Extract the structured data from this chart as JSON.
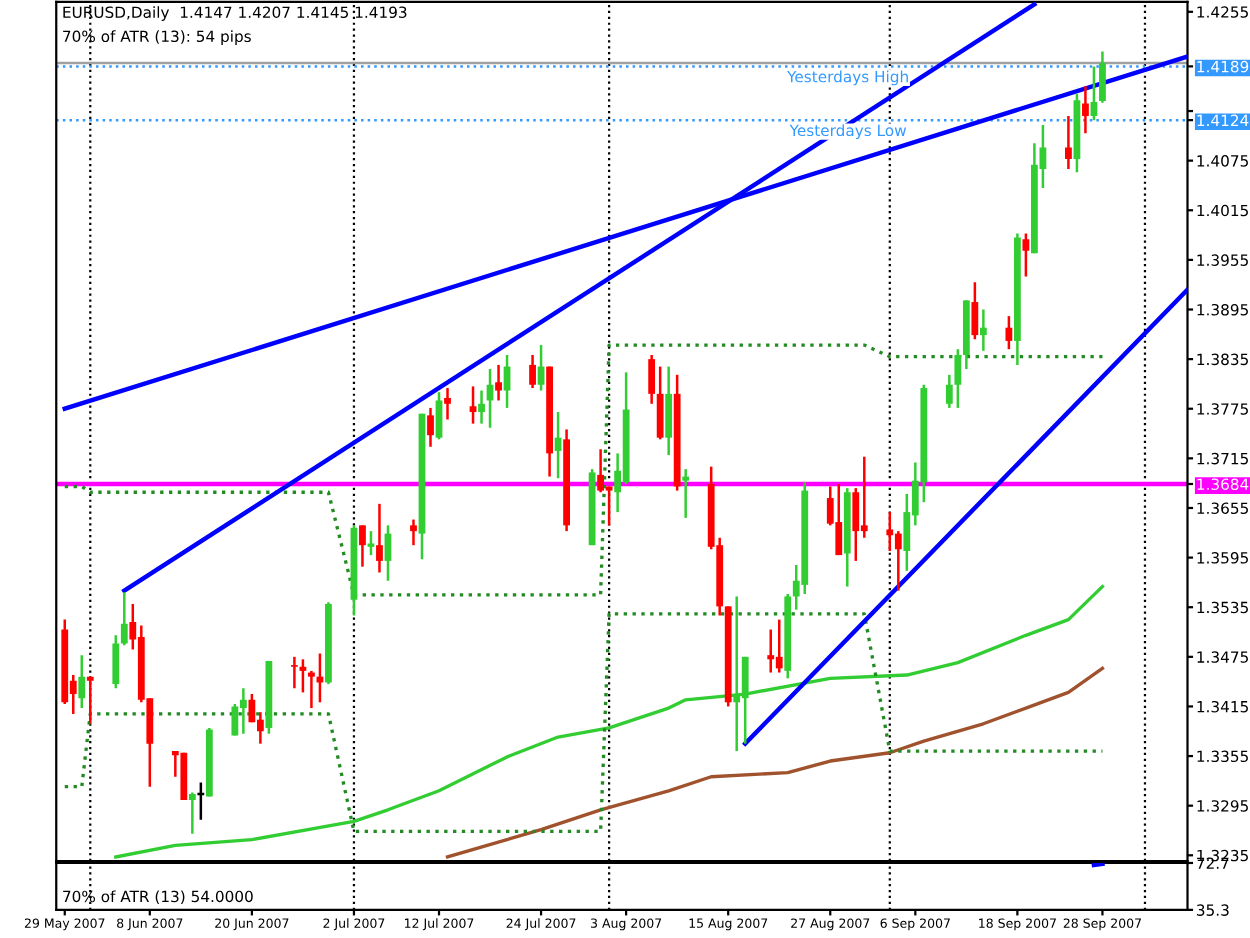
{
  "chart_data": [
    {
      "type": "candlestick",
      "title": "EURUSD,Daily  1.4147 1.4207 1.4145 1.4193",
      "subtitle": "70% of ATR (13): 54 pips",
      "x": [
        "2007-05-29",
        "2007-05-30",
        "2007-05-31",
        "2007-06-01",
        "2007-06-04",
        "2007-06-05",
        "2007-06-06",
        "2007-06-07",
        "2007-06-08",
        "2007-06-11",
        "2007-06-12",
        "2007-06-13",
        "2007-06-14",
        "2007-06-15",
        "2007-06-18",
        "2007-06-19",
        "2007-06-20",
        "2007-06-21",
        "2007-06-22",
        "2007-06-25",
        "2007-06-26",
        "2007-06-27",
        "2007-06-28",
        "2007-06-29",
        "2007-07-02",
        "2007-07-03",
        "2007-07-04",
        "2007-07-05",
        "2007-07-06",
        "2007-07-09",
        "2007-07-10",
        "2007-07-11",
        "2007-07-12",
        "2007-07-13",
        "2007-07-16",
        "2007-07-17",
        "2007-07-18",
        "2007-07-19",
        "2007-07-20",
        "2007-07-23",
        "2007-07-24",
        "2007-07-25",
        "2007-07-26",
        "2007-07-27",
        "2007-07-30",
        "2007-07-31",
        "2007-08-01",
        "2007-08-02",
        "2007-08-03",
        "2007-08-06",
        "2007-08-07",
        "2007-08-08",
        "2007-08-09",
        "2007-08-10",
        "2007-08-13",
        "2007-08-14",
        "2007-08-15",
        "2007-08-16",
        "2007-08-17",
        "2007-08-20",
        "2007-08-21",
        "2007-08-22",
        "2007-08-23",
        "2007-08-24",
        "2007-08-27",
        "2007-08-28",
        "2007-08-29",
        "2007-08-30",
        "2007-08-31",
        "2007-09-03",
        "2007-09-04",
        "2007-09-05",
        "2007-09-06",
        "2007-09-07",
        "2007-09-10",
        "2007-09-11",
        "2007-09-12",
        "2007-09-13",
        "2007-09-14",
        "2007-09-17",
        "2007-09-18",
        "2007-09-19",
        "2007-09-20",
        "2007-09-21",
        "2007-09-24",
        "2007-09-25",
        "2007-09-26",
        "2007-09-27",
        "2007-09-28"
      ],
      "ohlc": [
        [
          1.3508,
          1.352,
          1.3418,
          1.342
        ],
        [
          1.3446,
          1.3453,
          1.3406,
          1.343
        ],
        [
          1.3425,
          1.3477,
          1.3413,
          1.3451
        ],
        [
          1.3451,
          1.3451,
          1.3394,
          1.3446
        ],
        [
          1.3442,
          1.3501,
          1.3437,
          1.3491
        ],
        [
          1.3491,
          1.3553,
          1.3489,
          1.3515
        ],
        [
          1.3517,
          1.3539,
          1.3484,
          1.3496
        ],
        [
          1.3499,
          1.3513,
          1.342,
          1.3423
        ],
        [
          1.3425,
          1.3425,
          1.3318,
          1.337
        ],
        [
          1.3361,
          1.3361,
          1.333,
          1.3356
        ],
        [
          1.3359,
          1.3359,
          1.3302,
          1.3302
        ],
        [
          1.3302,
          1.3311,
          1.3261,
          1.3309
        ],
        [
          1.3309,
          1.3323,
          1.3278,
          1.3309
        ],
        [
          1.3306,
          1.3389,
          1.3306,
          1.3387
        ],
        [
          1.338,
          1.3418,
          1.338,
          1.3415
        ],
        [
          1.3413,
          1.3437,
          1.3382,
          1.3423
        ],
        [
          1.3423,
          1.343,
          1.3396,
          1.3396
        ],
        [
          1.3399,
          1.3408,
          1.337,
          1.3385
        ],
        [
          1.3389,
          1.347,
          1.3382,
          1.347
        ],
        [
          1.3465,
          1.3475,
          1.3437,
          1.3463
        ],
        [
          1.3463,
          1.3472,
          1.3432,
          1.3458
        ],
        [
          1.3456,
          1.3458,
          1.3413,
          1.3451
        ],
        [
          1.3451,
          1.3479,
          1.342,
          1.3444
        ],
        [
          1.3444,
          1.3541,
          1.3442,
          1.3539
        ],
        [
          1.3544,
          1.3634,
          1.3525,
          1.3631
        ],
        [
          1.3634,
          1.3634,
          1.3584,
          1.361
        ],
        [
          1.3608,
          1.3627,
          1.3598,
          1.3612
        ],
        [
          1.361,
          1.366,
          1.3577,
          1.3591
        ],
        [
          1.3591,
          1.3634,
          1.3567,
          1.3624
        ],
        [
          1.3634,
          1.3641,
          1.361,
          1.3627
        ],
        [
          1.3624,
          1.3769,
          1.3593,
          1.3769
        ],
        [
          1.3767,
          1.3776,
          1.3729,
          1.3743
        ],
        [
          1.374,
          1.3795,
          1.3738,
          1.3785
        ],
        [
          1.3788,
          1.38,
          1.3762,
          1.3781
        ],
        [
          1.3778,
          1.3802,
          1.3757,
          1.3771
        ],
        [
          1.3771,
          1.3797,
          1.3757,
          1.3781
        ],
        [
          1.3785,
          1.3823,
          1.3752,
          1.3804
        ],
        [
          1.3807,
          1.3828,
          1.3785,
          1.3797
        ],
        [
          1.3797,
          1.384,
          1.3776,
          1.3826
        ],
        [
          1.3828,
          1.384,
          1.38,
          1.3804
        ],
        [
          1.3804,
          1.3852,
          1.3797,
          1.3826
        ],
        [
          1.3826,
          1.3826,
          1.3693,
          1.3721
        ],
        [
          1.3724,
          1.3771,
          1.3691,
          1.374
        ],
        [
          1.3738,
          1.375,
          1.3627,
          1.3634
        ],
        [
          1.361,
          1.3702,
          1.361,
          1.3698
        ],
        [
          1.3695,
          1.3726,
          1.3674,
          1.3676
        ],
        [
          1.3681,
          1.3681,
          1.3634,
          1.3676
        ],
        [
          1.3674,
          1.3721,
          1.365,
          1.37
        ],
        [
          1.3686,
          1.3819,
          1.3684,
          1.3774
        ],
        [
          1.3835,
          1.384,
          1.3781,
          1.3793
        ],
        [
          1.3793,
          1.3826,
          1.3738,
          1.374
        ],
        [
          1.374,
          1.3826,
          1.3719,
          1.3793
        ],
        [
          1.3793,
          1.3816,
          1.3676,
          1.3681
        ],
        [
          1.3688,
          1.3702,
          1.3643,
          1.3693
        ],
        [
          1.3684,
          1.3705,
          1.3605,
          1.3608
        ],
        [
          1.361,
          1.3619,
          1.3525,
          1.3536
        ],
        [
          1.3536,
          1.3536,
          1.3415,
          1.342
        ],
        [
          1.342,
          1.3548,
          1.3361,
          1.343
        ],
        [
          1.3425,
          1.3475,
          1.337,
          1.3475
        ],
        [
          1.3477,
          1.3508,
          1.3456,
          1.3472
        ],
        [
          1.3475,
          1.352,
          1.3456,
          1.3461
        ],
        [
          1.3458,
          1.3551,
          1.3449,
          1.3548
        ],
        [
          1.3548,
          1.3586,
          1.3532,
          1.3567
        ],
        [
          1.3562,
          1.3686,
          1.3551,
          1.3676
        ],
        [
          1.3667,
          1.3681,
          1.3634,
          1.3636
        ],
        [
          1.3638,
          1.3684,
          1.3598,
          1.3598
        ],
        [
          1.36,
          1.3679,
          1.356,
          1.3674
        ],
        [
          1.3674,
          1.3679,
          1.3591,
          1.3627
        ],
        [
          1.3634,
          1.3717,
          1.3619,
          1.3627
        ],
        [
          1.3629,
          1.365,
          1.3603,
          1.3622
        ],
        [
          1.3624,
          1.3627,
          1.3555,
          1.3605
        ],
        [
          1.3603,
          1.3672,
          1.3579,
          1.365
        ],
        [
          1.3646,
          1.371,
          1.3634,
          1.3688
        ],
        [
          1.3686,
          1.3804,
          1.3662,
          1.38
        ],
        [
          1.3781,
          1.3816,
          1.3776,
          1.3804
        ],
        [
          1.3804,
          1.3847,
          1.3776,
          1.384
        ],
        [
          1.384,
          1.3906,
          1.3823,
          1.3906
        ],
        [
          1.3904,
          1.3928,
          1.3859,
          1.3864
        ],
        [
          1.3864,
          1.3895,
          1.3845,
          1.3873
        ],
        [
          1.3873,
          1.3887,
          1.3847,
          1.3857
        ],
        [
          1.3857,
          1.3987,
          1.3828,
          1.3982
        ],
        [
          1.398,
          1.3987,
          1.3935,
          1.3966
        ],
        [
          1.3963,
          1.4096,
          1.3963,
          1.407
        ],
        [
          1.4065,
          1.4118,
          1.4042,
          1.4091
        ],
        [
          1.4091,
          1.4129,
          1.4065,
          1.4077
        ],
        [
          1.4077,
          1.4156,
          1.4061,
          1.4148
        ],
        [
          1.4144,
          1.4165,
          1.4108,
          1.4129
        ],
        [
          1.4129,
          1.4189,
          1.4124,
          1.4146
        ],
        [
          1.4147,
          1.4207,
          1.4145,
          1.4193
        ]
      ],
      "colors": [
        "#ff0000",
        "#ff0000",
        "#32cd32",
        "#ff0000",
        "#32cd32",
        "#32cd32",
        "#ff0000",
        "#ff0000",
        "#ff0000",
        "#ff0000",
        "#ff0000",
        "#32cd32",
        "#000000",
        "#32cd32",
        "#32cd32",
        "#32cd32",
        "#ff0000",
        "#ff0000",
        "#32cd32",
        "#ff0000",
        "#ff0000",
        "#ff0000",
        "#ff0000",
        "#32cd32",
        "#32cd32",
        "#ff0000",
        "#32cd32",
        "#ff0000",
        "#32cd32",
        "#ff0000",
        "#32cd32",
        "#ff0000",
        "#32cd32",
        "#ff0000",
        "#ff0000",
        "#32cd32",
        "#32cd32",
        "#ff0000",
        "#32cd32",
        "#ff0000",
        "#32cd32",
        "#ff0000",
        "#32cd32",
        "#ff0000",
        "#32cd32",
        "#ff0000",
        "#ff0000",
        "#32cd32",
        "#32cd32",
        "#ff0000",
        "#ff0000",
        "#32cd32",
        "#ff0000",
        "#32cd32",
        "#ff0000",
        "#ff0000",
        "#ff0000",
        "#32cd32",
        "#32cd32",
        "#ff0000",
        "#ff0000",
        "#32cd32",
        "#32cd32",
        "#32cd32",
        "#ff0000",
        "#ff0000",
        "#32cd32",
        "#ff0000",
        "#ff0000",
        "#ff0000",
        "#ff0000",
        "#32cd32",
        "#32cd32",
        "#32cd32",
        "#32cd32",
        "#32cd32",
        "#32cd32",
        "#ff0000",
        "#32cd32",
        "#ff0000",
        "#32cd32",
        "#ff0000",
        "#32cd32",
        "#32cd32",
        "#ff0000",
        "#32cd32",
        "#ff0000",
        "#32cd32",
        "#32cd32"
      ],
      "series": [
        {
          "type": "line",
          "color": "#32cd32",
          "x": [
            "2007-06-04",
            "2007-06-11",
            "2007-06-20",
            "2007-07-02",
            "2007-07-06",
            "2007-07-12",
            "2007-07-20",
            "2007-07-26",
            "2007-08-01",
            "2007-08-08",
            "2007-08-10",
            "2007-08-17",
            "2007-08-27",
            "2007-09-05",
            "2007-09-11",
            "2007-09-19",
            "2007-09-24",
            "2007-09-28"
          ],
          "values": [
            1.3233,
            1.3247,
            1.3254,
            1.3276,
            1.329,
            1.3313,
            1.3354,
            1.3378,
            1.3389,
            1.3413,
            1.3423,
            1.343,
            1.3449,
            1.3453,
            1.3468,
            1.3501,
            1.352,
            1.356
          ]
        },
        {
          "type": "line",
          "color": "#a0522d",
          "x": [
            "2007-07-13",
            "2007-07-24",
            "2007-07-31",
            "2007-08-08",
            "2007-08-13",
            "2007-08-22",
            "2007-08-27",
            "2007-09-03",
            "2007-09-07",
            "2007-09-14",
            "2007-09-19",
            "2007-09-24",
            "2007-09-28"
          ],
          "values": [
            1.3233,
            1.3266,
            1.329,
            1.3313,
            1.333,
            1.3335,
            1.3349,
            1.3359,
            1.3373,
            1.3394,
            1.3413,
            1.3432,
            1.3461
          ]
        },
        {
          "type": "line",
          "color": "#228b22",
          "line_style": "dotted",
          "x": [
            "2007-05-29",
            "2007-05-31",
            "2007-06-01",
            "2007-06-29",
            "2007-07-02",
            "2007-07-31",
            "2007-08-01",
            "2007-08-31",
            "2007-09-03",
            "2007-09-28"
          ],
          "values": [
            1.3681,
            1.3681,
            1.3674,
            1.3674,
            1.355,
            1.355,
            1.3852,
            1.3852,
            1.3838,
            1.3838
          ]
        },
        {
          "type": "line",
          "color": "#228b22",
          "line_style": "dotted",
          "x": [
            "2007-05-29",
            "2007-05-31",
            "2007-06-01",
            "2007-06-29",
            "2007-07-02",
            "2007-07-31",
            "2007-08-01",
            "2007-08-31",
            "2007-09-03",
            "2007-09-28"
          ],
          "values": [
            1.3318,
            1.3318,
            1.3406,
            1.3406,
            1.3264,
            1.3264,
            1.3527,
            1.3527,
            1.3361,
            1.3361
          ]
        },
        {
          "type": "line",
          "color": "#0000ff",
          "x": [
            "2007-05-29",
            "2007-10-08"
          ],
          "values": [
            1.3775,
            1.4201
          ]
        },
        {
          "type": "line",
          "color": "#0000ff",
          "x": [
            "2007-06-05",
            "2007-09-20"
          ],
          "values": [
            1.3555,
            1.4264
          ]
        },
        {
          "type": "line",
          "color": "#0000ff",
          "x": [
            "2007-08-17",
            "2007-10-08"
          ],
          "values": [
            1.337,
            1.3919
          ]
        }
      ],
      "ref_lines": [
        {
          "axis": "y",
          "value": 1.4193,
          "color": "#a0a0a0",
          "line_style": "solid"
        },
        {
          "axis": "y",
          "value": 1.4189,
          "label": "Yesterdays High",
          "color": "#3399ff",
          "line_style": "dotted"
        },
        {
          "axis": "y",
          "value": 1.4124,
          "label": "Yesterdays Low",
          "color": "#3399ff",
          "line_style": "dotted"
        },
        {
          "axis": "y",
          "value": 1.3684,
          "color": "#ff00ff",
          "line_style": "solid"
        },
        {
          "axis": "x",
          "value": "2007-06-01",
          "color": "#000000",
          "line_style": "dotted"
        },
        {
          "axis": "x",
          "value": "2007-07-02",
          "color": "#000000",
          "line_style": "dotted"
        },
        {
          "axis": "x",
          "value": "2007-08-01",
          "color": "#000000",
          "line_style": "dotted"
        },
        {
          "axis": "x",
          "value": "2007-09-03",
          "color": "#000000",
          "line_style": "dotted"
        },
        {
          "axis": "x",
          "value": "2007-10-03",
          "color": "#000000",
          "line_style": "dotted"
        }
      ],
      "xlim": [
        "2007-05-28",
        "2007-10-08"
      ],
      "ylim": [
        1.3228,
        1.4267
      ],
      "yticks": [
        1.4255,
        1.4189,
        {
          "value": 1.4135,
          "label": null
        },
        1.4124,
        1.4075,
        1.4015,
        1.3955,
        1.3895,
        1.3835,
        1.3775,
        1.3715,
        1.3684,
        1.3655,
        1.3595,
        1.3535,
        1.3475,
        1.3415,
        1.3355,
        1.3295,
        1.3235
      ],
      "tick_labels": "y"
    },
    {
      "type": "line",
      "title": "70% of ATR (13) 54.0000",
      "series": [
        {
          "color": "#0000ff",
          "x": [
            "2007-09-27",
            "2007-09-28"
          ],
          "values": [
            71,
            72
          ]
        }
      ],
      "ref_lines": [
        {
          "axis": "x",
          "value": "2007-06-01",
          "color": "#000000",
          "line_style": "dotted"
        },
        {
          "axis": "x",
          "value": "2007-07-02",
          "color": "#000000",
          "line_style": "dotted"
        },
        {
          "axis": "x",
          "value": "2007-08-01",
          "color": "#000000",
          "line_style": "dotted"
        },
        {
          "axis": "x",
          "value": "2007-09-03",
          "color": "#000000",
          "line_style": "dotted"
        },
        {
          "axis": "x",
          "value": "2007-10-03",
          "color": "#000000",
          "line_style": "dotted"
        }
      ],
      "xlim": [
        "2007-05-28",
        "2007-10-08"
      ],
      "xticks": [
        {
          "value": "2007-05-29",
          "label": "29 May 2007"
        },
        {
          "value": "2007-06-08",
          "label": "8 Jun 2007"
        },
        {
          "value": "2007-06-20",
          "label": "20 Jun 2007"
        },
        {
          "value": "2007-07-02",
          "label": "2 Jul 2007"
        },
        {
          "value": "2007-07-12",
          "label": "12 Jul 2007"
        },
        {
          "value": "2007-07-24",
          "label": "24 Jul 2007"
        },
        {
          "value": "2007-08-03",
          "label": "3 Aug 2007"
        },
        {
          "value": "2007-08-15",
          "label": "15 Aug 2007"
        },
        {
          "value": "2007-08-27",
          "label": "27 Aug 2007"
        },
        {
          "value": "2007-09-06",
          "label": "6 Sep 2007"
        },
        {
          "value": "2007-09-18",
          "label": "18 Sep 2007"
        },
        {
          "value": "2007-09-28",
          "label": "28 Sep 2007"
        }
      ],
      "ylim": [
        35.3,
        72.7
      ],
      "yticks": [
        72.7,
        35.3
      ]
    }
  ]
}
